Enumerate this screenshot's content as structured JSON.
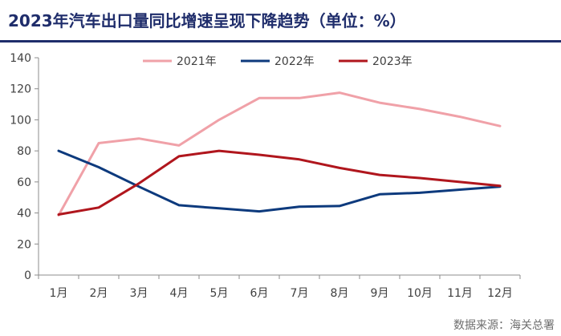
{
  "chart_data": {
    "type": "line",
    "title": "2023年汽车出口量同比增速呈现下降趋势（单位：%）",
    "source": "数据来源：海关总署",
    "xlabel": "",
    "ylabel": "",
    "categories": [
      "1月",
      "2月",
      "3月",
      "4月",
      "5月",
      "6月",
      "7月",
      "8月",
      "9月",
      "10月",
      "11月",
      "12月"
    ],
    "ylim": [
      0,
      140
    ],
    "yticks": [
      "0",
      "20",
      "40",
      "60",
      "80",
      "100",
      "120",
      "140"
    ],
    "grid": false,
    "legend_position": "top-center",
    "series": [
      {
        "name": "2021年",
        "color": "#f0a1a8",
        "values": [
          38.5,
          85,
          88,
          83.5,
          100,
          114,
          114,
          117.5,
          111,
          107,
          102,
          96
        ]
      },
      {
        "name": "2022年",
        "color": "#0d3a7d",
        "values": [
          80,
          69.5,
          57,
          45,
          43,
          41,
          44,
          44.5,
          52,
          53,
          55,
          57
        ]
      },
      {
        "name": "2023年",
        "color": "#b0161d",
        "values": [
          39,
          43.5,
          59,
          76.5,
          80,
          77.5,
          74.5,
          69,
          64.5,
          62.5,
          60,
          57.5
        ]
      }
    ]
  }
}
